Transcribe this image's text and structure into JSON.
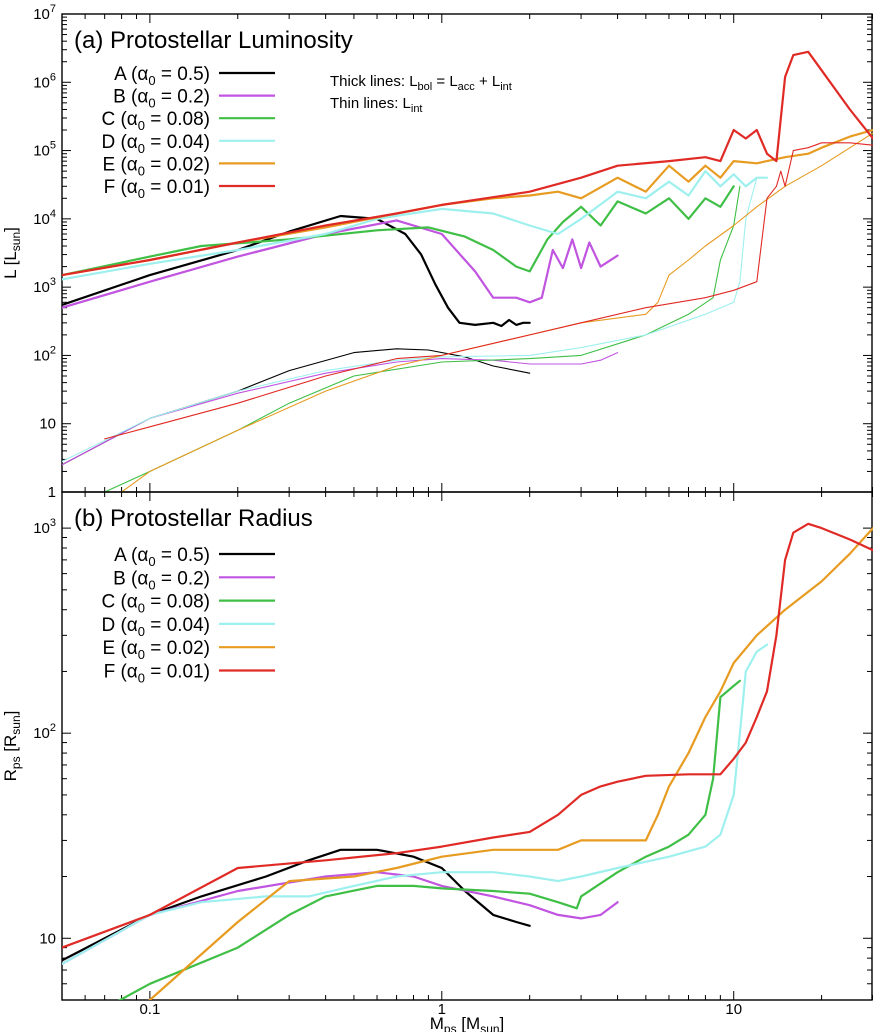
{
  "chart_data": [
    {
      "type": "line",
      "panel": "a",
      "title": "(a) Protostellar Luminosity",
      "xlabel": "M_ps [M_sun]",
      "ylabel": "L [L_sun]",
      "xscale": "log",
      "yscale": "log",
      "xlim": [
        0.05,
        30
      ],
      "ylim": [
        1,
        10000000
      ],
      "y_ticks": [
        {
          "value": 1,
          "label": "1"
        },
        {
          "value": 10,
          "label": "10"
        },
        {
          "value": 100,
          "label": "10",
          "exp": "2"
        },
        {
          "value": 1000,
          "label": "10",
          "exp": "3"
        },
        {
          "value": 10000,
          "label": "10",
          "exp": "4"
        },
        {
          "value": 100000,
          "label": "10",
          "exp": "5"
        },
        {
          "value": 1000000,
          "label": "10",
          "exp": "6"
        },
        {
          "value": 10000000,
          "label": "10",
          "exp": "7"
        }
      ],
      "legend_position": "top-left",
      "annotations": {
        "thick": {
          "text": "Thick lines: L",
          "sub1": "bol",
          "mid1": " = L",
          "sub2": "acc",
          "mid2": " + L",
          "sub3": "int"
        },
        "thin": {
          "text": "Thin lines: L",
          "sub1": "int"
        }
      },
      "series": [
        {
          "name": "A",
          "alpha": "0.5",
          "color": "#000000",
          "thick": {
            "x": [
              0.05,
              0.1,
              0.2,
              0.3,
              0.45,
              0.6,
              0.75,
              0.85,
              0.95,
              1.05,
              1.15,
              1.3,
              1.5,
              1.6,
              1.7,
              1.8,
              1.9,
              2.0
            ],
            "y": [
              550,
              1500,
              3500,
              6500,
              11000,
              10000,
              6000,
              3000,
              1100,
              500,
              300,
              280,
              300,
              270,
              330,
              280,
              300,
              300
            ]
          },
          "thin": {
            "x": [
              0.05,
              0.1,
              0.2,
              0.3,
              0.5,
              0.7,
              0.9,
              1.2,
              1.5,
              2.0
            ],
            "y": [
              2.5,
              12,
              30,
              60,
              110,
              125,
              120,
              95,
              70,
              55
            ]
          }
        },
        {
          "name": "B",
          "alpha": "0.2",
          "color": "#c154e0",
          "thick": {
            "x": [
              0.05,
              0.1,
              0.2,
              0.4,
              0.7,
              1.0,
              1.3,
              1.5,
              1.8,
              2.0,
              2.2,
              2.4,
              2.6,
              2.8,
              3.0,
              3.2,
              3.5,
              4.0
            ],
            "y": [
              500,
              1200,
              2800,
              6000,
              9500,
              6000,
              1700,
              700,
              700,
              600,
              700,
              3500,
              1900,
              5000,
              1900,
              4500,
              2000,
              2900
            ]
          },
          "thin": {
            "x": [
              0.05,
              0.1,
              0.2,
              0.4,
              0.7,
              1.0,
              1.5,
              2.0,
              3.0,
              3.5,
              4.0
            ],
            "y": [
              2.5,
              12,
              28,
              55,
              80,
              90,
              85,
              75,
              75,
              85,
              110
            ]
          }
        },
        {
          "name": "C",
          "alpha": "0.08",
          "color": "#3fbf46",
          "thick": {
            "x": [
              0.05,
              0.1,
              0.15,
              0.3,
              0.6,
              0.9,
              1.2,
              1.5,
              1.8,
              2.0,
              2.3,
              2.6,
              3.0,
              3.5,
              4.0,
              5.0,
              6.0,
              7.0,
              8.0,
              9.0,
              10.0
            ],
            "y": [
              1500,
              2800,
              4000,
              5000,
              6800,
              7500,
              5500,
              3500,
              2000,
              1700,
              5000,
              9000,
              15000,
              8000,
              18000,
              12000,
              20000,
              10000,
              20000,
              15000,
              30000
            ]
          },
          "thin": {
            "x": [
              0.07,
              0.1,
              0.2,
              0.3,
              0.5,
              1.0,
              2.0,
              3.0,
              5.0,
              7.0,
              8.5,
              9.0,
              10.0,
              10.5
            ],
            "y": [
              1,
              2,
              8,
              20,
              50,
              80,
              90,
              100,
              200,
              400,
              700,
              2500,
              8000,
              30000
            ]
          }
        },
        {
          "name": "D",
          "alpha": "0.04",
          "color": "#9ef0ee",
          "thick": {
            "x": [
              0.05,
              0.1,
              0.2,
              0.4,
              0.6,
              1.0,
              1.5,
              2.0,
              2.5,
              3.0,
              4.0,
              5.0,
              6.0,
              7.0,
              8.0,
              9.0,
              10.0,
              11.0,
              12.0,
              13.0
            ],
            "y": [
              1300,
              2200,
              3500,
              6000,
              10000,
              14000,
              12000,
              8000,
              6000,
              10000,
              25000,
              20000,
              35000,
              22000,
              50000,
              30000,
              45000,
              30000,
              40000,
              40000
            ]
          },
          "thin": {
            "x": [
              0.05,
              0.1,
              0.2,
              0.4,
              0.7,
              1.0,
              2.0,
              3.0,
              5.0,
              8.0,
              10.0,
              10.5,
              11.0,
              12.0
            ],
            "y": [
              2.8,
              12,
              30,
              60,
              85,
              95,
              100,
              130,
              200,
              400,
              600,
              1200,
              10000,
              40000
            ]
          }
        },
        {
          "name": "E",
          "alpha": "0.02",
          "color": "#e79b21",
          "thick": {
            "x": [
              0.05,
              0.1,
              0.2,
              0.4,
              0.7,
              1.0,
              1.5,
              2.0,
              2.5,
              3.0,
              4.0,
              5.0,
              6.0,
              7.0,
              8.0,
              9.0,
              10.0,
              12.0,
              15.0,
              18.0,
              20.0,
              25.0,
              30.0
            ],
            "y": [
              1500,
              2500,
              4500,
              7500,
              12000,
              16000,
              20000,
              22000,
              25000,
              20000,
              40000,
              25000,
              60000,
              35000,
              60000,
              40000,
              70000,
              65000,
              80000,
              90000,
              110000,
              160000,
              200000
            ]
          },
          "thin": {
            "x": [
              0.08,
              0.1,
              0.2,
              0.4,
              0.7,
              1.0,
              2.0,
              3.0,
              5.0,
              5.5,
              6.0,
              7.0,
              8.0,
              10.0,
              12.0,
              15.0,
              20.0,
              30.0
            ],
            "y": [
              1,
              2,
              8,
              30,
              70,
              100,
              200,
              300,
              400,
              600,
              1500,
              2500,
              4000,
              8000,
              15000,
              30000,
              60000,
              180000
            ]
          }
        },
        {
          "name": "F",
          "alpha": "0.01",
          "color": "#e02a25",
          "thick": {
            "x": [
              0.05,
              0.1,
              0.2,
              0.4,
              0.7,
              1.0,
              2.0,
              3.0,
              4.0,
              6.0,
              8.0,
              9.0,
              10.0,
              11.0,
              12.0,
              13.0,
              14.0,
              15.0,
              16.0,
              18.0,
              20.0,
              25.0,
              30.0
            ],
            "y": [
              1500,
              2500,
              4500,
              8000,
              12000,
              16000,
              25000,
              40000,
              60000,
              70000,
              80000,
              70000,
              200000,
              150000,
              200000,
              90000,
              70000,
              1200000,
              2500000,
              2800000,
              1500000,
              400000,
              150000
            ]
          },
          "thin": {
            "x": [
              0.07,
              0.1,
              0.2,
              0.4,
              0.7,
              1.0,
              2.0,
              3.0,
              5.0,
              8.0,
              10.0,
              12.0,
              13.0,
              14.0,
              14.5,
              15.0,
              16.0,
              18.0,
              20.0,
              25.0,
              30.0
            ],
            "y": [
              6,
              9,
              20,
              50,
              90,
              100,
              200,
              300,
              500,
              700,
              900,
              1200,
              20000,
              30000,
              50000,
              30000,
              100000,
              110000,
              130000,
              130000,
              120000
            ]
          }
        }
      ]
    },
    {
      "type": "line",
      "panel": "b",
      "title": "(b) Protostellar Radius",
      "xlabel": "M_ps [M_sun]",
      "ylabel": "R_ps [R_sun]",
      "xscale": "log",
      "yscale": "log",
      "xlim": [
        0.05,
        30
      ],
      "ylim": [
        5,
        1500
      ],
      "x_ticks": [
        {
          "value": 0.1,
          "label": "0.1"
        },
        {
          "value": 1,
          "label": "1"
        },
        {
          "value": 10,
          "label": "10"
        }
      ],
      "y_ticks": [
        {
          "value": 10,
          "label": "10"
        },
        {
          "value": 100,
          "label": "10",
          "exp": "2"
        },
        {
          "value": 1000,
          "label": "10",
          "exp": "3"
        }
      ],
      "legend_position": "top-left",
      "series": [
        {
          "name": "A",
          "alpha": "0.5",
          "color": "#000000",
          "x": [
            0.05,
            0.1,
            0.15,
            0.25,
            0.35,
            0.45,
            0.6,
            0.8,
            1.0,
            1.2,
            1.5,
            1.8,
            2.0
          ],
          "y": [
            7.8,
            13,
            16,
            20,
            24,
            27,
            27,
            25,
            22,
            17,
            13,
            12,
            11.5
          ]
        },
        {
          "name": "B",
          "alpha": "0.2",
          "color": "#c154e0",
          "x": [
            0.05,
            0.1,
            0.2,
            0.4,
            0.6,
            0.8,
            1.0,
            1.5,
            2.0,
            2.5,
            3.0,
            3.5,
            4.0
          ],
          "y": [
            7.5,
            13,
            17,
            20,
            21,
            20,
            18,
            16,
            14.5,
            13,
            12.5,
            13,
            15
          ]
        },
        {
          "name": "C",
          "alpha": "0.08",
          "color": "#3fbf46",
          "x": [
            0.05,
            0.1,
            0.2,
            0.3,
            0.4,
            0.6,
            0.8,
            1.0,
            1.5,
            2.0,
            2.5,
            2.9,
            3.0,
            4.0,
            5.0,
            6.0,
            7.0,
            8.0,
            8.5,
            9.0,
            10.0,
            10.5
          ],
          "y": [
            3.5,
            6,
            9,
            13,
            16,
            18,
            18,
            17.5,
            17,
            16.5,
            15,
            14,
            16,
            21,
            25,
            28,
            32,
            40,
            60,
            150,
            170,
            180
          ]
        },
        {
          "name": "D",
          "alpha": "0.04",
          "color": "#9ef0ee",
          "x": [
            0.05,
            0.1,
            0.15,
            0.25,
            0.35,
            0.5,
            0.7,
            1.0,
            1.5,
            2.0,
            2.5,
            3.0,
            4.0,
            6.0,
            8.0,
            9.0,
            10.0,
            10.5,
            11.0,
            12.0,
            13.0
          ],
          "y": [
            7.5,
            13,
            15,
            16,
            16,
            18,
            20,
            21,
            21,
            20,
            19,
            20,
            22,
            25,
            28,
            32,
            50,
            100,
            200,
            250,
            270
          ]
        },
        {
          "name": "E",
          "alpha": "0.02",
          "color": "#e79b21",
          "x": [
            0.05,
            0.1,
            0.2,
            0.3,
            0.5,
            0.7,
            1.0,
            1.5,
            2.0,
            2.5,
            3.0,
            4.0,
            5.0,
            5.5,
            6.0,
            7.0,
            8.0,
            9.0,
            10.0,
            12.0,
            15.0,
            20.0,
            25.0,
            30.0
          ],
          "y": [
            2,
            5,
            12,
            19,
            20,
            22,
            25,
            27,
            27,
            27,
            30,
            30,
            30,
            40,
            55,
            80,
            120,
            160,
            220,
            300,
            400,
            550,
            750,
            1000
          ]
        },
        {
          "name": "F",
          "alpha": "0.01",
          "color": "#e02a25",
          "x": [
            0.05,
            0.1,
            0.2,
            0.4,
            0.7,
            1.0,
            1.5,
            2.0,
            2.5,
            3.0,
            3.5,
            4.0,
            5.0,
            7.0,
            9.0,
            10.0,
            11.0,
            12.0,
            13.0,
            14.0,
            15.0,
            16.0,
            18.0,
            20.0,
            25.0,
            30.0
          ],
          "y": [
            9,
            13,
            22,
            24,
            26,
            28,
            31,
            33,
            40,
            50,
            55,
            58,
            62,
            63,
            63,
            75,
            90,
            120,
            160,
            300,
            700,
            950,
            1050,
            1000,
            880,
            780
          ]
        }
      ]
    }
  ]
}
